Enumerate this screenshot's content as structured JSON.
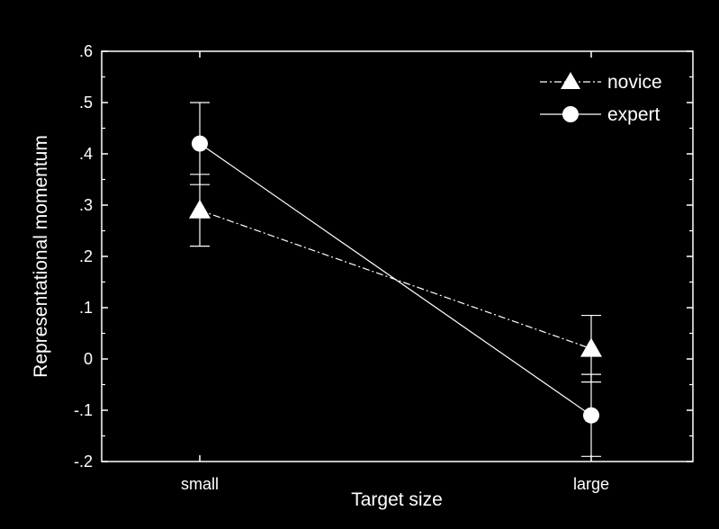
{
  "chart_data": {
    "type": "line",
    "title": "",
    "xlabel": "Target size",
    "ylabel": "Representational momentum",
    "categories": [
      "small",
      "large"
    ],
    "ylim": [
      -0.2,
      0.6
    ],
    "yticks": [
      -0.2,
      -0.1,
      0,
      0.1,
      0.2,
      0.3,
      0.4,
      0.5,
      0.6
    ],
    "ytick_labels": [
      "-.2",
      "-.1",
      "0",
      ".1",
      ".2",
      ".3",
      ".4",
      ".5",
      ".6"
    ],
    "grid": false,
    "legend_position": "top-right",
    "series": [
      {
        "name": "novice",
        "marker": "triangle",
        "line_style": "dash-dot",
        "values": [
          0.29,
          0.02
        ],
        "error_upper": [
          0.36,
          0.085
        ],
        "error_lower": [
          0.22,
          -0.045
        ]
      },
      {
        "name": "expert",
        "marker": "circle",
        "line_style": "solid",
        "values": [
          0.42,
          -0.11
        ],
        "error_upper": [
          0.5,
          -0.03
        ],
        "error_lower": [
          0.34,
          -0.19
        ]
      }
    ],
    "colors": {
      "background": "#000000",
      "foreground": "#ffffff"
    }
  }
}
